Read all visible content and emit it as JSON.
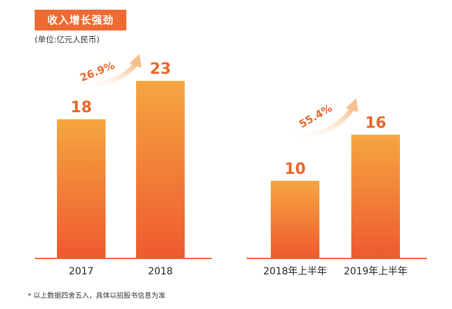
{
  "title": "收入增长强劲",
  "unit": "(单位:亿元人民币)",
  "footnote": "* 以上数据四舍五入，具体以招股书信息为准",
  "colors": {
    "bar_top": "#f5a640",
    "bar_bottom": "#ee5a2f",
    "label": "#e8672a",
    "title_bg": "#ee6a33",
    "arrow": "#f6c08c"
  },
  "chart_data": [
    {
      "type": "bar",
      "categories": [
        "2017",
        "2018"
      ],
      "values": [
        18,
        23
      ],
      "growth_label": "26.9%"
    },
    {
      "type": "bar",
      "categories": [
        "2018年上半年",
        "2019年上半年"
      ],
      "values": [
        10,
        16
      ],
      "growth_label": "55.4%"
    }
  ]
}
